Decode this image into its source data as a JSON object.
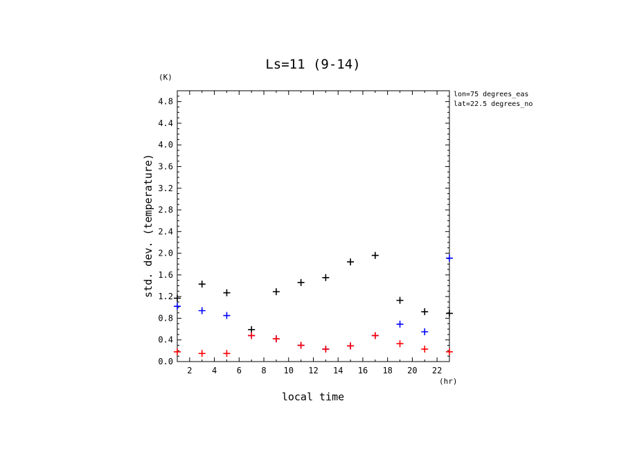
{
  "chart_data": {
    "type": "scatter",
    "title": "Ls=11 (9-14)",
    "xlabel": "local time",
    "ylabel": "std. dev. (temperature)",
    "xunit": "(hr)",
    "yunit": "(K)",
    "xlim": [
      1,
      23
    ],
    "ylim": [
      0,
      5.0
    ],
    "xticks": [
      2,
      4,
      6,
      8,
      10,
      12,
      14,
      16,
      18,
      20,
      22
    ],
    "yticks": [
      0.0,
      0.4,
      0.8,
      1.2,
      1.6,
      2.0,
      2.4,
      2.8,
      3.2,
      3.6,
      4.0,
      4.4,
      4.8
    ],
    "annotations": [
      "lon=75 degrees_eas",
      "lat=22.5 degrees_no"
    ],
    "grid": false,
    "series": [
      {
        "color": "#000000",
        "x": [
          1,
          3,
          5,
          7,
          9,
          11,
          13,
          15,
          17,
          19,
          21,
          23
        ],
        "y": [
          1.17,
          1.43,
          1.27,
          0.59,
          1.29,
          1.46,
          1.55,
          1.84,
          1.96,
          1.13,
          0.92,
          0.89
        ]
      },
      {
        "color": "#0000ff",
        "x": [
          1,
          3,
          5,
          7,
          9,
          11,
          13,
          15,
          17,
          19,
          21,
          23
        ],
        "y": [
          1.02,
          0.94,
          0.85,
          0.48,
          0.42,
          0.3,
          0.23,
          0.29,
          0.48,
          0.69,
          0.55,
          1.91
        ]
      },
      {
        "color": "#ff0000",
        "x": [
          1,
          3,
          5,
          7,
          9,
          11,
          13,
          15,
          17,
          19,
          21,
          23
        ],
        "y": [
          0.18,
          0.15,
          0.15,
          0.48,
          0.42,
          0.3,
          0.23,
          0.29,
          0.48,
          0.33,
          0.23,
          0.18
        ]
      }
    ]
  }
}
